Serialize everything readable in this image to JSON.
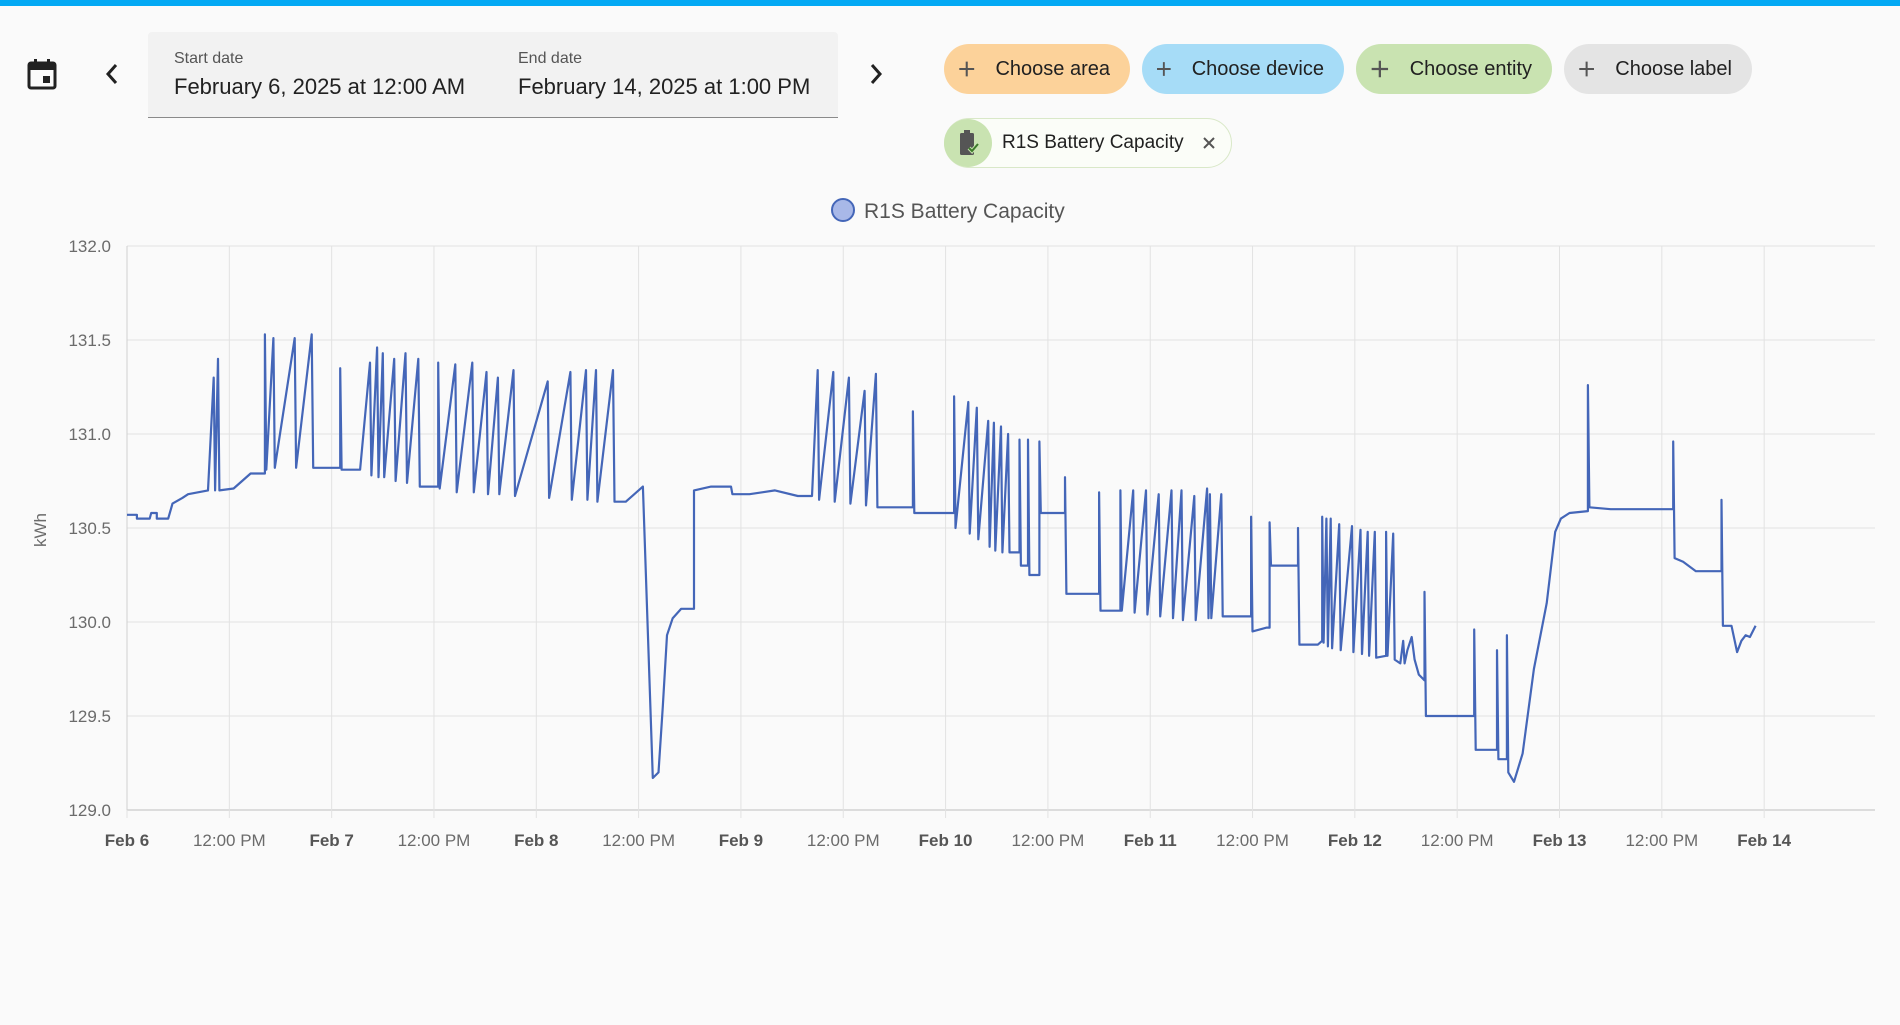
{
  "toolbar": {
    "calendar_icon": "calendar-icon",
    "prev_icon": "chevron-left-icon",
    "next_icon": "chevron-right-icon",
    "start_label": "Start date",
    "start_value": "February 6, 2025 at 12:00 AM",
    "end_label": "End date",
    "end_value": "February 14, 2025 at 1:00 PM"
  },
  "filters": {
    "area": "Choose area",
    "device": "Choose device",
    "entity": "Choose entity",
    "label": "Choose label",
    "colors": {
      "area": "#fcd29a",
      "device": "#a6dcf7",
      "entity": "#c9e3b1",
      "label": "#e4e4e4"
    }
  },
  "selected_entity": {
    "name": "R1S Battery Capacity",
    "icon": "battery-check-icon"
  },
  "chart_data": {
    "type": "line",
    "legend": "R1S Battery Capacity",
    "legend_position": "top-center",
    "ylabel": "kWh",
    "ylim": [
      129.0,
      132.0
    ],
    "yticks": [
      "132.0",
      "131.5",
      "131.0",
      "130.5",
      "130.0",
      "129.5",
      "129.0"
    ],
    "xlim": [
      "2025-02-06T00:00",
      "2025-02-14T13:00"
    ],
    "xticks": [
      "Feb 6",
      "12:00 PM",
      "Feb 7",
      "12:00 PM",
      "Feb 8",
      "12:00 PM",
      "Feb 9",
      "12:00 PM",
      "Feb 10",
      "12:00 PM",
      "Feb 11",
      "12:00 PM",
      "Feb 12",
      "12:00 PM",
      "Feb 13",
      "12:00 PM",
      "Feb 14"
    ],
    "grid": true,
    "line_color": "#4466b8",
    "series": [
      {
        "name": "R1S Battery Capacity",
        "points": [
          [
            "2025-02-06T00:00",
            130.57
          ],
          [
            "2025-02-06T01:10",
            130.57
          ],
          [
            "2025-02-06T01:10",
            130.55
          ],
          [
            "2025-02-06T02:40",
            130.55
          ],
          [
            "2025-02-06T02:50",
            130.58
          ],
          [
            "2025-02-06T03:30",
            130.58
          ],
          [
            "2025-02-06T03:30",
            130.55
          ],
          [
            "2025-02-06T04:50",
            130.55
          ],
          [
            "2025-02-06T05:20",
            130.63
          ],
          [
            "2025-02-06T06:30",
            130.66
          ],
          [
            "2025-02-06T07:10",
            130.68
          ],
          [
            "2025-02-06T09:30",
            130.7
          ],
          [
            "2025-02-06T10:10",
            131.3
          ],
          [
            "2025-02-06T10:20",
            130.7
          ],
          [
            "2025-02-06T10:40",
            131.4
          ],
          [
            "2025-02-06T10:50",
            130.7
          ],
          [
            "2025-02-06T12:30",
            130.71
          ],
          [
            "2025-02-06T14:30",
            130.79
          ],
          [
            "2025-02-06T16:10",
            130.79
          ],
          [
            "2025-02-06T16:10",
            131.53
          ],
          [
            "2025-02-06T16:20",
            130.81
          ],
          [
            "2025-02-06T17:10",
            131.51
          ],
          [
            "2025-02-06T17:20",
            130.82
          ],
          [
            "2025-02-06T19:40",
            131.51
          ],
          [
            "2025-02-06T19:50",
            130.82
          ],
          [
            "2025-02-06T21:40",
            131.53
          ],
          [
            "2025-02-06T21:50",
            130.82
          ],
          [
            "2025-02-07T01:00",
            130.82
          ],
          [
            "2025-02-07T01:00",
            131.35
          ],
          [
            "2025-02-07T01:10",
            130.81
          ],
          [
            "2025-02-07T03:20",
            130.81
          ],
          [
            "2025-02-07T04:30",
            131.38
          ],
          [
            "2025-02-07T04:40",
            130.78
          ],
          [
            "2025-02-07T05:20",
            131.46
          ],
          [
            "2025-02-07T05:30",
            130.77
          ],
          [
            "2025-02-07T06:00",
            131.43
          ],
          [
            "2025-02-07T06:10",
            130.77
          ],
          [
            "2025-02-07T07:20",
            131.4
          ],
          [
            "2025-02-07T07:30",
            130.75
          ],
          [
            "2025-02-07T08:40",
            131.43
          ],
          [
            "2025-02-07T08:50",
            130.74
          ],
          [
            "2025-02-07T10:10",
            131.4
          ],
          [
            "2025-02-07T10:20",
            130.72
          ],
          [
            "2025-02-07T12:30",
            130.72
          ],
          [
            "2025-02-07T12:30",
            131.38
          ],
          [
            "2025-02-07T12:40",
            130.71
          ],
          [
            "2025-02-07T14:30",
            131.37
          ],
          [
            "2025-02-07T14:40",
            130.69
          ],
          [
            "2025-02-07T16:30",
            131.38
          ],
          [
            "2025-02-07T16:40",
            130.69
          ],
          [
            "2025-02-07T18:10",
            131.33
          ],
          [
            "2025-02-07T18:20",
            130.68
          ],
          [
            "2025-02-07T19:30",
            131.3
          ],
          [
            "2025-02-07T19:40",
            130.68
          ],
          [
            "2025-02-07T21:20",
            131.34
          ],
          [
            "2025-02-07T21:30",
            130.67
          ],
          [
            "2025-02-08T01:20",
            131.28
          ],
          [
            "2025-02-08T01:30",
            130.66
          ],
          [
            "2025-02-08T04:00",
            131.33
          ],
          [
            "2025-02-08T04:10",
            130.65
          ],
          [
            "2025-02-08T05:50",
            131.34
          ],
          [
            "2025-02-08T06:00",
            130.65
          ],
          [
            "2025-02-08T07:00",
            131.34
          ],
          [
            "2025-02-08T07:10",
            130.64
          ],
          [
            "2025-02-08T09:00",
            131.34
          ],
          [
            "2025-02-08T09:10",
            130.64
          ],
          [
            "2025-02-08T10:30",
            130.64
          ],
          [
            "2025-02-08T12:30",
            130.72
          ],
          [
            "2025-02-08T13:40",
            129.17
          ],
          [
            "2025-02-08T14:20",
            129.2
          ],
          [
            "2025-02-08T14:50",
            129.55
          ],
          [
            "2025-02-08T15:20",
            129.93
          ],
          [
            "2025-02-08T16:00",
            130.02
          ],
          [
            "2025-02-08T17:00",
            130.07
          ],
          [
            "2025-02-08T18:30",
            130.07
          ],
          [
            "2025-02-08T18:30",
            130.7
          ],
          [
            "2025-02-08T20:30",
            130.72
          ],
          [
            "2025-02-08T22:50",
            130.72
          ],
          [
            "2025-02-08T23:00",
            130.68
          ],
          [
            "2025-02-09T01:00",
            130.68
          ],
          [
            "2025-02-09T02:30",
            130.69
          ],
          [
            "2025-02-09T04:00",
            130.7
          ],
          [
            "2025-02-09T06:40",
            130.67
          ],
          [
            "2025-02-09T08:20",
            130.67
          ],
          [
            "2025-02-09T09:00",
            131.34
          ],
          [
            "2025-02-09T09:10",
            130.65
          ],
          [
            "2025-02-09T10:50",
            131.33
          ],
          [
            "2025-02-09T11:00",
            130.64
          ],
          [
            "2025-02-09T12:40",
            131.3
          ],
          [
            "2025-02-09T12:50",
            130.63
          ],
          [
            "2025-02-09T14:30",
            131.23
          ],
          [
            "2025-02-09T14:40",
            130.62
          ],
          [
            "2025-02-09T15:50",
            131.32
          ],
          [
            "2025-02-09T16:00",
            130.61
          ],
          [
            "2025-02-09T20:10",
            130.61
          ],
          [
            "2025-02-09T20:10",
            131.12
          ],
          [
            "2025-02-09T20:20",
            130.58
          ],
          [
            "2025-02-10T01:00",
            130.58
          ],
          [
            "2025-02-10T01:00",
            131.2
          ],
          [
            "2025-02-10T01:10",
            130.5
          ],
          [
            "2025-02-10T02:40",
            131.17
          ],
          [
            "2025-02-10T02:50",
            130.47
          ],
          [
            "2025-02-10T03:40",
            131.14
          ],
          [
            "2025-02-10T03:50",
            130.44
          ],
          [
            "2025-02-10T05:00",
            131.07
          ],
          [
            "2025-02-10T05:10",
            130.4
          ],
          [
            "2025-02-10T05:40",
            131.06
          ],
          [
            "2025-02-10T05:50",
            130.38
          ],
          [
            "2025-02-10T06:30",
            131.04
          ],
          [
            "2025-02-10T06:40",
            130.37
          ],
          [
            "2025-02-10T07:20",
            131.0
          ],
          [
            "2025-02-10T07:30",
            130.37
          ],
          [
            "2025-02-10T08:40",
            130.37
          ],
          [
            "2025-02-10T08:40",
            130.97
          ],
          [
            "2025-02-10T08:50",
            130.3
          ],
          [
            "2025-02-10T09:40",
            130.3
          ],
          [
            "2025-02-10T09:40",
            130.97
          ],
          [
            "2025-02-10T09:50",
            130.25
          ],
          [
            "2025-02-10T11:00",
            130.25
          ],
          [
            "2025-02-10T11:00",
            130.96
          ],
          [
            "2025-02-10T11:10",
            130.58
          ],
          [
            "2025-02-10T14:00",
            130.58
          ],
          [
            "2025-02-10T14:00",
            130.77
          ],
          [
            "2025-02-10T14:10",
            130.15
          ],
          [
            "2025-02-10T17:00",
            130.15
          ],
          [
            "2025-02-10T18:00",
            130.15
          ],
          [
            "2025-02-10T18:00",
            130.69
          ],
          [
            "2025-02-10T18:10",
            130.06
          ],
          [
            "2025-02-10T20:30",
            130.06
          ],
          [
            "2025-02-10T20:30",
            130.7
          ],
          [
            "2025-02-10T20:40",
            130.06
          ],
          [
            "2025-02-10T22:00",
            130.7
          ],
          [
            "2025-02-10T22:10",
            130.05
          ],
          [
            "2025-02-10T23:30",
            130.7
          ],
          [
            "2025-02-10T23:40",
            130.04
          ],
          [
            "2025-02-11T01:00",
            130.68
          ],
          [
            "2025-02-11T01:10",
            130.03
          ],
          [
            "2025-02-11T02:30",
            130.7
          ],
          [
            "2025-02-11T02:40",
            130.02
          ],
          [
            "2025-02-11T03:40",
            130.7
          ],
          [
            "2025-02-11T03:50",
            130.01
          ],
          [
            "2025-02-11T05:10",
            130.67
          ],
          [
            "2025-02-11T05:20",
            130.01
          ],
          [
            "2025-02-11T06:40",
            130.71
          ],
          [
            "2025-02-11T06:50",
            130.02
          ],
          [
            "2025-02-11T07:00",
            130.68
          ],
          [
            "2025-02-11T07:10",
            130.02
          ],
          [
            "2025-02-11T08:20",
            130.68
          ],
          [
            "2025-02-11T08:30",
            130.03
          ],
          [
            "2025-02-11T11:50",
            130.03
          ],
          [
            "2025-02-11T11:50",
            130.56
          ],
          [
            "2025-02-11T12:00",
            129.95
          ],
          [
            "2025-02-11T13:40",
            129.97
          ],
          [
            "2025-02-11T14:00",
            129.97
          ],
          [
            "2025-02-11T14:00",
            130.53
          ],
          [
            "2025-02-11T14:10",
            130.3
          ],
          [
            "2025-02-11T17:20",
            130.3
          ],
          [
            "2025-02-11T17:20",
            130.5
          ],
          [
            "2025-02-11T17:30",
            129.88
          ],
          [
            "2025-02-11T19:40",
            129.88
          ],
          [
            "2025-02-11T20:10",
            129.9
          ],
          [
            "2025-02-11T20:10",
            130.56
          ],
          [
            "2025-02-11T20:20",
            129.89
          ],
          [
            "2025-02-11T20:40",
            130.55
          ],
          [
            "2025-02-11T20:50",
            129.87
          ],
          [
            "2025-02-11T21:10",
            130.55
          ],
          [
            "2025-02-11T21:20",
            129.86
          ],
          [
            "2025-02-11T22:10",
            130.52
          ],
          [
            "2025-02-11T22:20",
            129.85
          ],
          [
            "2025-02-11T23:40",
            130.51
          ],
          [
            "2025-02-11T23:50",
            129.84
          ],
          [
            "2025-02-12T00:40",
            130.49
          ],
          [
            "2025-02-12T00:50",
            129.83
          ],
          [
            "2025-02-12T01:30",
            130.48
          ],
          [
            "2025-02-12T01:40",
            129.82
          ],
          [
            "2025-02-12T02:20",
            130.48
          ],
          [
            "2025-02-12T02:30",
            129.81
          ],
          [
            "2025-02-12T03:40",
            129.82
          ],
          [
            "2025-02-12T03:40",
            130.48
          ],
          [
            "2025-02-12T03:50",
            129.82
          ],
          [
            "2025-02-12T04:30",
            130.47
          ],
          [
            "2025-02-12T04:40",
            129.8
          ],
          [
            "2025-02-12T05:20",
            129.78
          ],
          [
            "2025-02-12T05:40",
            129.9
          ],
          [
            "2025-02-12T05:50",
            129.78
          ],
          [
            "2025-02-12T06:10",
            129.85
          ],
          [
            "2025-02-12T06:40",
            129.92
          ],
          [
            "2025-02-12T07:00",
            129.8
          ],
          [
            "2025-02-12T07:30",
            129.72
          ],
          [
            "2025-02-12T08:10",
            129.69
          ],
          [
            "2025-02-12T08:10",
            130.16
          ],
          [
            "2025-02-12T08:20",
            129.5
          ],
          [
            "2025-02-12T08:40",
            129.5
          ],
          [
            "2025-02-12T14:00",
            129.5
          ],
          [
            "2025-02-12T14:00",
            129.96
          ],
          [
            "2025-02-12T14:10",
            129.32
          ],
          [
            "2025-02-12T16:40",
            129.32
          ],
          [
            "2025-02-12T16:40",
            129.85
          ],
          [
            "2025-02-12T16:50",
            129.27
          ],
          [
            "2025-02-12T17:50",
            129.27
          ],
          [
            "2025-02-12T17:50",
            129.93
          ],
          [
            "2025-02-12T18:00",
            129.2
          ],
          [
            "2025-02-12T18:40",
            129.15
          ],
          [
            "2025-02-12T19:40",
            129.3
          ],
          [
            "2025-02-12T21:00",
            129.75
          ],
          [
            "2025-02-12T22:30",
            130.1
          ],
          [
            "2025-02-12T23:30",
            130.48
          ],
          [
            "2025-02-13T00:10",
            130.55
          ],
          [
            "2025-02-13T01:10",
            130.58
          ],
          [
            "2025-02-13T03:20",
            130.59
          ],
          [
            "2025-02-13T03:20",
            131.26
          ],
          [
            "2025-02-13T03:30",
            130.61
          ],
          [
            "2025-02-13T06:00",
            130.6
          ],
          [
            "2025-02-13T13:20",
            130.6
          ],
          [
            "2025-02-13T13:20",
            130.96
          ],
          [
            "2025-02-13T13:30",
            130.34
          ],
          [
            "2025-02-13T14:30",
            130.32
          ],
          [
            "2025-02-13T16:00",
            130.27
          ],
          [
            "2025-02-13T19:00",
            130.27
          ],
          [
            "2025-02-13T19:00",
            130.65
          ],
          [
            "2025-02-13T19:10",
            129.98
          ],
          [
            "2025-02-13T20:10",
            129.98
          ],
          [
            "2025-02-13T20:50",
            129.84
          ],
          [
            "2025-02-13T21:20",
            129.9
          ],
          [
            "2025-02-13T21:50",
            129.93
          ],
          [
            "2025-02-13T22:20",
            129.92
          ],
          [
            "2025-02-13T23:00",
            129.98
          ]
        ]
      }
    ]
  }
}
